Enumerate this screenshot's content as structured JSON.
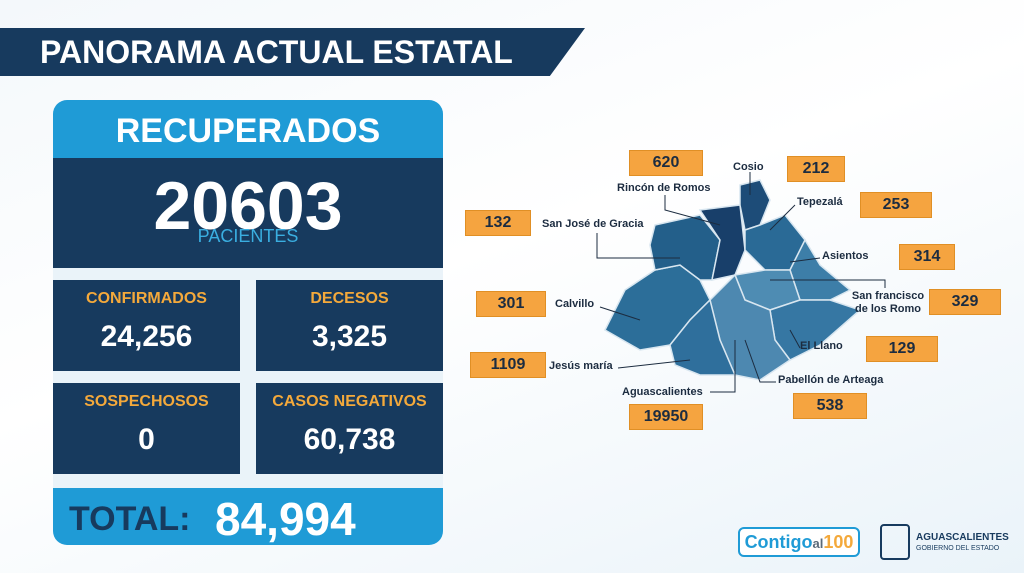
{
  "header": {
    "title": "PANORAMA ACTUAL ESTATAL"
  },
  "recovered": {
    "label": "RECUPERADOS",
    "value": "20603",
    "unit": "PACIENTES"
  },
  "stats": [
    {
      "label": "CONFIRMADOS",
      "value": "24,256"
    },
    {
      "label": "DECESOS",
      "value": "3,325"
    },
    {
      "label": "SOSPECHOSOS",
      "value": "0"
    },
    {
      "label": "CASOS NEGATIVOS",
      "value": "60,738"
    }
  ],
  "total": {
    "label": "TOTAL:",
    "value": "84,994"
  },
  "map": {
    "municipalities": [
      {
        "name": "Rincón de Romos",
        "value": "620"
      },
      {
        "name": "Cosio",
        "value": "212"
      },
      {
        "name": "Tepezalá",
        "value": "253"
      },
      {
        "name": "San José de Gracia",
        "value": "132"
      },
      {
        "name": "Asientos",
        "value": "314"
      },
      {
        "name": "San francisco de los Romo",
        "value": "329"
      },
      {
        "name": "Calvillo",
        "value": "301"
      },
      {
        "name": "El Llano",
        "value": "129"
      },
      {
        "name": "Jesús maría",
        "value": "1109"
      },
      {
        "name": "Pabellón de Arteaga",
        "value": "538"
      },
      {
        "name": "Aguascalientes",
        "value": "19950"
      }
    ]
  },
  "footer": {
    "campaign_a": "Contigo",
    "campaign_b": "al",
    "campaign_c": "100",
    "org": "AGUASCALIENTES",
    "org_sub": "GOBIERNO DEL ESTADO"
  }
}
